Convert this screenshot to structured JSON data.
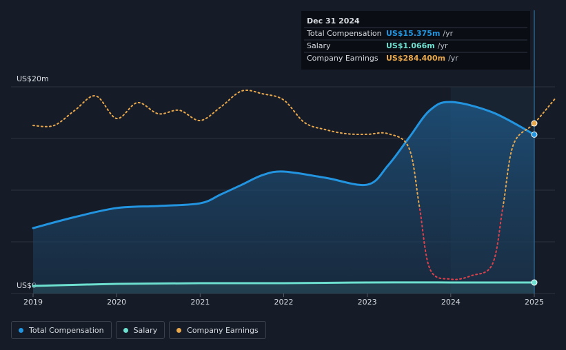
{
  "chart_data": {
    "type": "line",
    "xlim": [
      2019,
      2025.25
    ],
    "xticks": [
      2019,
      2020,
      2021,
      2022,
      2023,
      2024,
      2025
    ],
    "ylim": [
      0,
      20
    ],
    "yticks": [
      {
        "value": 0,
        "label": "US$0"
      },
      {
        "value": 20,
        "label": "US$20m"
      }
    ],
    "grid_lines": [
      0,
      5,
      10,
      15,
      20
    ],
    "y2lim": [
      -296,
      409
    ],
    "highlight": [
      2024,
      2025
    ],
    "series": [
      {
        "name": "Total Compensation",
        "color": "#2394df",
        "area": true,
        "x": [
          2019,
          2019.5,
          2020,
          2020.5,
          2021,
          2021.25,
          2021.5,
          2021.75,
          2022,
          2022.5,
          2023,
          2023.25,
          2023.5,
          2023.75,
          2024,
          2024.5,
          2025
        ],
        "values": [
          6.33,
          7.4,
          8.27,
          8.47,
          8.73,
          9.6,
          10.53,
          11.47,
          11.8,
          11.2,
          10.53,
          12.4,
          15.07,
          17.73,
          18.53,
          17.53,
          15.375
        ]
      },
      {
        "name": "Salary",
        "color": "#6ee0d0",
        "area": true,
        "x": [
          2019,
          2020,
          2021,
          2022,
          2023,
          2024,
          2025
        ],
        "values": [
          0.73,
          0.93,
          1.0,
          1.0,
          1.07,
          1.07,
          1.066
        ]
      },
      {
        "name": "Company Earnings",
        "color": "#e9a84c",
        "negative_color": "#e0404a",
        "dashed": true,
        "axis": "y2",
        "x": [
          2019,
          2019.25,
          2019.5,
          2019.75,
          2020,
          2020.25,
          2020.5,
          2020.75,
          2021,
          2021.25,
          2021.5,
          2021.75,
          2022,
          2022.25,
          2022.5,
          2022.75,
          2023,
          2023.25,
          2023.5,
          2023.625,
          2023.75,
          2024,
          2024.25,
          2024.5,
          2024.625,
          2024.75,
          2025,
          2025.25
        ],
        "values": [
          277,
          277,
          329,
          378,
          301,
          355,
          317,
          329,
          294,
          341,
          395,
          385,
          364,
          287,
          263,
          249,
          247,
          249,
          200,
          0,
          -212,
          -247,
          -235,
          -195,
          0,
          212,
          284.4,
          369
        ]
      }
    ],
    "tooltip": {
      "title": "Dec 31 2024",
      "x": 2025,
      "rows": [
        {
          "label": "Total Compensation",
          "value": "US$15.375m",
          "unit": "/yr"
        },
        {
          "label": "Salary",
          "value": "US$1.066m",
          "unit": "/yr"
        },
        {
          "label": "Company Earnings",
          "value": "US$284.400m",
          "unit": "/yr"
        }
      ]
    }
  }
}
